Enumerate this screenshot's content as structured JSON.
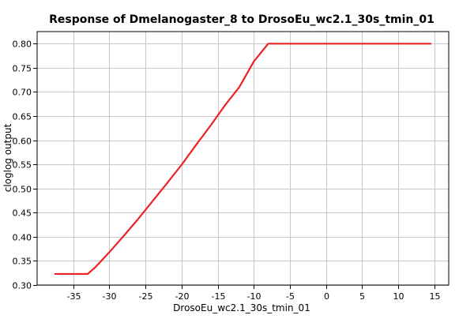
{
  "chart_data": {
    "type": "line",
    "title": "Response of Dmelanogaster_8 to DrosoEu_wc2.1_30s_tmin_01",
    "xlabel": "DrosoEu_wc2.1_30s_tmin_01",
    "ylabel": "cloglog output",
    "xlim": [
      -40,
      17
    ],
    "ylim": [
      0.3,
      0.825
    ],
    "x_ticks": [
      -35,
      -30,
      -25,
      -20,
      -15,
      -10,
      -5,
      0,
      5,
      10,
      15
    ],
    "y_ticks": [
      0.3,
      0.35,
      0.4,
      0.45,
      0.5,
      0.55,
      0.6,
      0.65,
      0.7,
      0.75,
      0.8
    ],
    "x_tick_labels": [
      "-35",
      "-30",
      "-25",
      "-20",
      "-15",
      "-10",
      "-5",
      "0",
      "5",
      "10",
      "15"
    ],
    "y_tick_labels": [
      "0.30",
      "0.35",
      "0.40",
      "0.45",
      "0.50",
      "0.55",
      "0.60",
      "0.65",
      "0.70",
      "0.75",
      "0.80"
    ],
    "grid": true,
    "series": [
      {
        "color": "#ee2222",
        "x": [
          -37.5,
          -35,
          -33.0,
          -32,
          -30,
          -28,
          -26,
          -24,
          -22,
          -20,
          -18,
          -16,
          -14,
          -12,
          -10,
          -8.0,
          -5,
          0,
          5,
          10,
          14.5
        ],
        "y": [
          0.323,
          0.323,
          0.323,
          0.336,
          0.368,
          0.402,
          0.437,
          0.474,
          0.511,
          0.549,
          0.59,
          0.63,
          0.672,
          0.71,
          0.763,
          0.8,
          0.8,
          0.8,
          0.8,
          0.8,
          0.8
        ]
      }
    ]
  }
}
